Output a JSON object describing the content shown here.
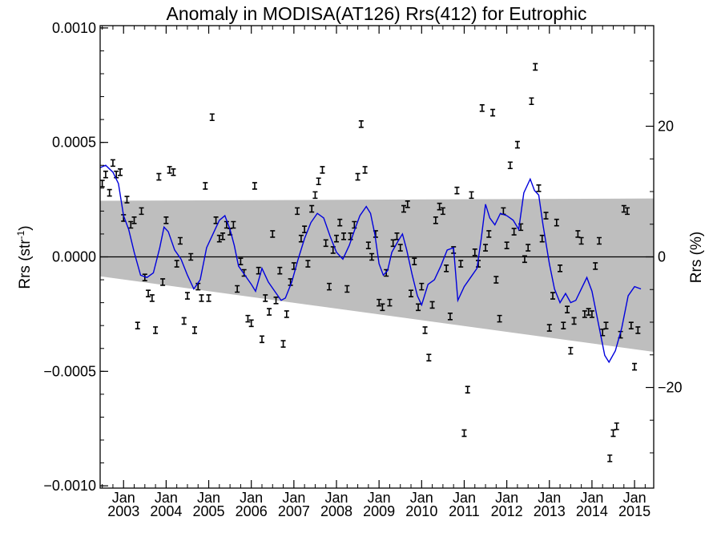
{
  "chart_data": {
    "type": "scatter",
    "title": "Anomaly in MODISA(AT126) Rrs(412) for Eutrophic",
    "ylabel_left": {
      "base": "Rrs (str",
      "sup": "-1",
      "end": ")"
    },
    "ylabel_right": "Rrs (%)",
    "xlim": [
      2002.45,
      2015.45
    ],
    "ylim": [
      -0.00101,
      0.00101
    ],
    "right_ylim_percent": [
      -35.4,
      35.4
    ],
    "left_ticks": [
      {
        "value": 0.001,
        "label": "0.0010"
      },
      {
        "value": 0.0005,
        "label": "0.0005"
      },
      {
        "value": 0.0,
        "label": "0.0000"
      },
      {
        "value": -0.0005,
        "label": "−0.0005"
      },
      {
        "value": -0.001,
        "label": "−0.0010"
      }
    ],
    "right_ticks": [
      {
        "value": 20,
        "label": "20"
      },
      {
        "value": 0,
        "label": "0"
      },
      {
        "value": -20,
        "label": "−20"
      }
    ],
    "x_ticks": [
      {
        "value": 2003.0,
        "month": "Jan",
        "year": "2003"
      },
      {
        "value": 2004.0,
        "month": "Jan",
        "year": "2004"
      },
      {
        "value": 2005.0,
        "month": "Jan",
        "year": "2005"
      },
      {
        "value": 2006.0,
        "month": "Jan",
        "year": "2006"
      },
      {
        "value": 2007.0,
        "month": "Jan",
        "year": "2007"
      },
      {
        "value": 2008.0,
        "month": "Jan",
        "year": "2008"
      },
      {
        "value": 2009.0,
        "month": "Jan",
        "year": "2009"
      },
      {
        "value": 2010.0,
        "month": "Jan",
        "year": "2010"
      },
      {
        "value": 2011.0,
        "month": "Jan",
        "year": "2011"
      },
      {
        "value": 2012.0,
        "month": "Jan",
        "year": "2012"
      },
      {
        "value": 2013.0,
        "month": "Jan",
        "year": "2013"
      },
      {
        "value": 2014.0,
        "month": "Jan",
        "year": "2014"
      },
      {
        "value": 2015.0,
        "month": "Jan",
        "year": "2015"
      }
    ],
    "band": {
      "color": "#bebebe",
      "upper": [
        [
          2002.45,
          0.000245
        ],
        [
          2015.45,
          0.000255
        ]
      ],
      "lower": [
        [
          2002.45,
          -8.5e-05
        ],
        [
          2015.45,
          -0.000415
        ]
      ]
    },
    "zero_line": true,
    "points": [
      [
        2002.5,
        0.00032
      ],
      [
        2002.58,
        0.00036
      ],
      [
        2002.67,
        0.00028
      ],
      [
        2002.75,
        0.00041
      ],
      [
        2002.83,
        0.00036
      ],
      [
        2002.92,
        0.00037
      ],
      [
        2003.0,
        0.00017
      ],
      [
        2003.08,
        0.00025
      ],
      [
        2003.17,
        0.00014
      ],
      [
        2003.25,
        0.00016
      ],
      [
        2003.33,
        -0.0003
      ],
      [
        2003.42,
        0.0002
      ],
      [
        2003.5,
        -9e-05
      ],
      [
        2003.58,
        -0.00016
      ],
      [
        2003.67,
        -0.00018
      ],
      [
        2003.75,
        -0.00032
      ],
      [
        2003.83,
        0.00035
      ],
      [
        2003.92,
        -0.00011
      ],
      [
        2004.0,
        0.00016
      ],
      [
        2004.08,
        0.00038
      ],
      [
        2004.17,
        0.00037
      ],
      [
        2004.25,
        -3e-05
      ],
      [
        2004.33,
        7e-05
      ],
      [
        2004.42,
        -0.00028
      ],
      [
        2004.5,
        -0.00017
      ],
      [
        2004.58,
        0.0
      ],
      [
        2004.67,
        -0.00032
      ],
      [
        2004.75,
        -0.00013
      ],
      [
        2004.83,
        -0.00018
      ],
      [
        2004.92,
        0.00031
      ],
      [
        2005.0,
        -0.00018
      ],
      [
        2005.08,
        0.00061
      ],
      [
        2005.17,
        0.00016
      ],
      [
        2005.25,
        8e-05
      ],
      [
        2005.33,
        9e-05
      ],
      [
        2005.42,
        0.00014
      ],
      [
        2005.5,
        0.00011
      ],
      [
        2005.58,
        0.00014
      ],
      [
        2005.67,
        -0.00014
      ],
      [
        2005.75,
        -2e-05
      ],
      [
        2005.83,
        -7e-05
      ],
      [
        2005.92,
        -0.00027
      ],
      [
        2006.0,
        -0.00029
      ],
      [
        2006.08,
        0.00031
      ],
      [
        2006.17,
        -6e-05
      ],
      [
        2006.25,
        -0.00036
      ],
      [
        2006.33,
        -0.00018
      ],
      [
        2006.42,
        -0.00024
      ],
      [
        2006.5,
        0.0001
      ],
      [
        2006.58,
        -0.00019
      ],
      [
        2006.67,
        -6e-05
      ],
      [
        2006.75,
        -0.00038
      ],
      [
        2006.83,
        -0.00025
      ],
      [
        2006.92,
        -0.00011
      ],
      [
        2007.0,
        -4e-05
      ],
      [
        2007.08,
        0.0002
      ],
      [
        2007.17,
        8e-05
      ],
      [
        2007.25,
        0.00012
      ],
      [
        2007.33,
        -3e-05
      ],
      [
        2007.42,
        0.00021
      ],
      [
        2007.5,
        0.00027
      ],
      [
        2007.58,
        0.00033
      ],
      [
        2007.67,
        0.00038
      ],
      [
        2007.75,
        6e-05
      ],
      [
        2007.83,
        -0.00013
      ],
      [
        2007.92,
        3e-05
      ],
      [
        2008.0,
        8e-05
      ],
      [
        2008.08,
        0.00015
      ],
      [
        2008.17,
        9e-05
      ],
      [
        2008.25,
        -0.00014
      ],
      [
        2008.33,
        9e-05
      ],
      [
        2008.42,
        0.00014
      ],
      [
        2008.5,
        0.00035
      ],
      [
        2008.58,
        0.00058
      ],
      [
        2008.67,
        0.00038
      ],
      [
        2008.75,
        5e-05
      ],
      [
        2008.83,
        0.0
      ],
      [
        2008.92,
        0.0001
      ],
      [
        2009.0,
        -0.0002
      ],
      [
        2009.08,
        -0.00022
      ],
      [
        2009.17,
        -7e-05
      ],
      [
        2009.25,
        -0.0002
      ],
      [
        2009.33,
        6e-05
      ],
      [
        2009.42,
        9e-05
      ],
      [
        2009.5,
        4e-05
      ],
      [
        2009.58,
        0.00021
      ],
      [
        2009.67,
        0.00023
      ],
      [
        2009.75,
        -0.00016
      ],
      [
        2009.83,
        -2e-05
      ],
      [
        2009.92,
        -0.00022
      ],
      [
        2010.0,
        -0.00013
      ],
      [
        2010.08,
        -0.00032
      ],
      [
        2010.17,
        -0.00044
      ],
      [
        2010.25,
        -0.00021
      ],
      [
        2010.33,
        0.00016
      ],
      [
        2010.42,
        0.00022
      ],
      [
        2010.5,
        0.0002
      ],
      [
        2010.58,
        -5e-05
      ],
      [
        2010.67,
        -0.00026
      ],
      [
        2010.75,
        3e-05
      ],
      [
        2010.83,
        0.00029
      ],
      [
        2010.92,
        -3e-05
      ],
      [
        2011.0,
        -0.00077
      ],
      [
        2011.08,
        -0.00058
      ],
      [
        2011.17,
        0.00027
      ],
      [
        2011.25,
        2e-05
      ],
      [
        2011.33,
        -3e-05
      ],
      [
        2011.42,
        0.00065
      ],
      [
        2011.5,
        4e-05
      ],
      [
        2011.58,
        0.0001
      ],
      [
        2011.67,
        0.00063
      ],
      [
        2011.75,
        -0.0001
      ],
      [
        2011.83,
        -0.00027
      ],
      [
        2011.92,
        0.0002
      ],
      [
        2012.0,
        5e-05
      ],
      [
        2012.08,
        0.0004
      ],
      [
        2012.17,
        0.00011
      ],
      [
        2012.25,
        0.00049
      ],
      [
        2012.33,
        0.00013
      ],
      [
        2012.42,
        -1e-05
      ],
      [
        2012.5,
        4e-05
      ],
      [
        2012.58,
        0.00068
      ],
      [
        2012.67,
        0.00083
      ],
      [
        2012.75,
        0.0003
      ],
      [
        2012.83,
        8e-05
      ],
      [
        2012.92,
        0.00018
      ],
      [
        2013.0,
        -0.00031
      ],
      [
        2013.08,
        -0.00017
      ],
      [
        2013.17,
        0.00015
      ],
      [
        2013.25,
        -5e-05
      ],
      [
        2013.33,
        -0.0003
      ],
      [
        2013.42,
        -0.00023
      ],
      [
        2013.5,
        -0.00041
      ],
      [
        2013.58,
        -0.00028
      ],
      [
        2013.67,
        0.0001
      ],
      [
        2013.75,
        7e-05
      ],
      [
        2013.83,
        -0.00025
      ],
      [
        2013.92,
        -0.00024
      ],
      [
        2014.0,
        -0.00025
      ],
      [
        2014.08,
        -4e-05
      ],
      [
        2014.17,
        7e-05
      ],
      [
        2014.25,
        -0.00033
      ],
      [
        2014.33,
        -0.0003
      ],
      [
        2014.42,
        -0.00088
      ],
      [
        2014.5,
        -0.00077
      ],
      [
        2014.58,
        -0.00074
      ],
      [
        2014.67,
        -0.00034
      ],
      [
        2014.75,
        0.00021
      ],
      [
        2014.83,
        0.0002
      ],
      [
        2014.92,
        -0.0003
      ],
      [
        2015.0,
        -0.00048
      ],
      [
        2015.08,
        -0.00032
      ]
    ],
    "running_mean": {
      "color": "#0000dd",
      "points": [
        [
          2002.45,
          0.00039
        ],
        [
          2002.58,
          0.0004
        ],
        [
          2002.75,
          0.00037
        ],
        [
          2002.88,
          0.00032
        ],
        [
          2003.0,
          0.00018
        ],
        [
          2003.12,
          0.00012
        ],
        [
          2003.25,
          2e-05
        ],
        [
          2003.4,
          -8e-05
        ],
        [
          2003.55,
          -9e-05
        ],
        [
          2003.7,
          -7e-05
        ],
        [
          2003.85,
          4e-05
        ],
        [
          2003.95,
          0.00013
        ],
        [
          2004.05,
          0.00011
        ],
        [
          2004.2,
          3e-05
        ],
        [
          2004.35,
          -1e-05
        ],
        [
          2004.5,
          -8e-05
        ],
        [
          2004.65,
          -0.00014
        ],
        [
          2004.8,
          -0.0001
        ],
        [
          2004.95,
          4e-05
        ],
        [
          2005.1,
          0.0001
        ],
        [
          2005.25,
          0.00016
        ],
        [
          2005.38,
          0.00018
        ],
        [
          2005.5,
          0.00012
        ],
        [
          2005.6,
          5e-05
        ],
        [
          2005.7,
          -4e-05
        ],
        [
          2005.85,
          -8e-05
        ],
        [
          2006.0,
          -0.00012
        ],
        [
          2006.1,
          -0.00015
        ],
        [
          2006.25,
          -5e-05
        ],
        [
          2006.4,
          -0.00011
        ],
        [
          2006.55,
          -0.00015
        ],
        [
          2006.7,
          -0.00019
        ],
        [
          2006.8,
          -0.00018
        ],
        [
          2006.95,
          -0.00011
        ],
        [
          2007.1,
          -1e-05
        ],
        [
          2007.25,
          8e-05
        ],
        [
          2007.4,
          0.00015
        ],
        [
          2007.55,
          0.00019
        ],
        [
          2007.7,
          0.00017
        ],
        [
          2007.85,
          9e-05
        ],
        [
          2008.0,
          2e-05
        ],
        [
          2008.15,
          -1e-05
        ],
        [
          2008.3,
          5e-05
        ],
        [
          2008.45,
          0.00013
        ],
        [
          2008.55,
          0.00018
        ],
        [
          2008.7,
          0.00022
        ],
        [
          2008.8,
          0.00019
        ],
        [
          2008.9,
          0.0001
        ],
        [
          2009.0,
          -3e-05
        ],
        [
          2009.1,
          -8e-05
        ],
        [
          2009.2,
          -6e-05
        ],
        [
          2009.3,
          2e-05
        ],
        [
          2009.45,
          7e-05
        ],
        [
          2009.55,
          0.0001
        ],
        [
          2009.65,
          3e-05
        ],
        [
          2009.78,
          -8e-05
        ],
        [
          2009.9,
          -0.00017
        ],
        [
          2010.0,
          -0.00021
        ],
        [
          2010.15,
          -0.00012
        ],
        [
          2010.3,
          -0.0001
        ],
        [
          2010.45,
          -4e-05
        ],
        [
          2010.6,
          3e-05
        ],
        [
          2010.75,
          4e-05
        ],
        [
          2010.85,
          -0.00019
        ],
        [
          2011.0,
          -0.00013
        ],
        [
          2011.15,
          -9e-05
        ],
        [
          2011.3,
          -5e-05
        ],
        [
          2011.4,
          8e-05
        ],
        [
          2011.5,
          0.00023
        ],
        [
          2011.6,
          0.00017
        ],
        [
          2011.72,
          0.00014
        ],
        [
          2011.85,
          0.00019
        ],
        [
          2012.0,
          0.00018
        ],
        [
          2012.15,
          0.00016
        ],
        [
          2012.28,
          0.00012
        ],
        [
          2012.4,
          0.00028
        ],
        [
          2012.55,
          0.00034
        ],
        [
          2012.65,
          0.00029
        ],
        [
          2012.75,
          0.00027
        ],
        [
          2012.85,
          0.00014
        ],
        [
          2013.0,
          -3e-05
        ],
        [
          2013.12,
          -0.00014
        ],
        [
          2013.25,
          -0.0002
        ],
        [
          2013.38,
          -0.00016
        ],
        [
          2013.5,
          -0.0002
        ],
        [
          2013.62,
          -0.00019
        ],
        [
          2013.75,
          -0.00014
        ],
        [
          2013.88,
          -9e-05
        ],
        [
          2014.0,
          -0.00015
        ],
        [
          2014.15,
          -0.00029
        ],
        [
          2014.3,
          -0.00043
        ],
        [
          2014.4,
          -0.00046
        ],
        [
          2014.55,
          -0.00041
        ],
        [
          2014.7,
          -0.00031
        ],
        [
          2014.85,
          -0.00017
        ],
        [
          2015.0,
          -0.00013
        ],
        [
          2015.15,
          -0.00014
        ]
      ]
    }
  }
}
